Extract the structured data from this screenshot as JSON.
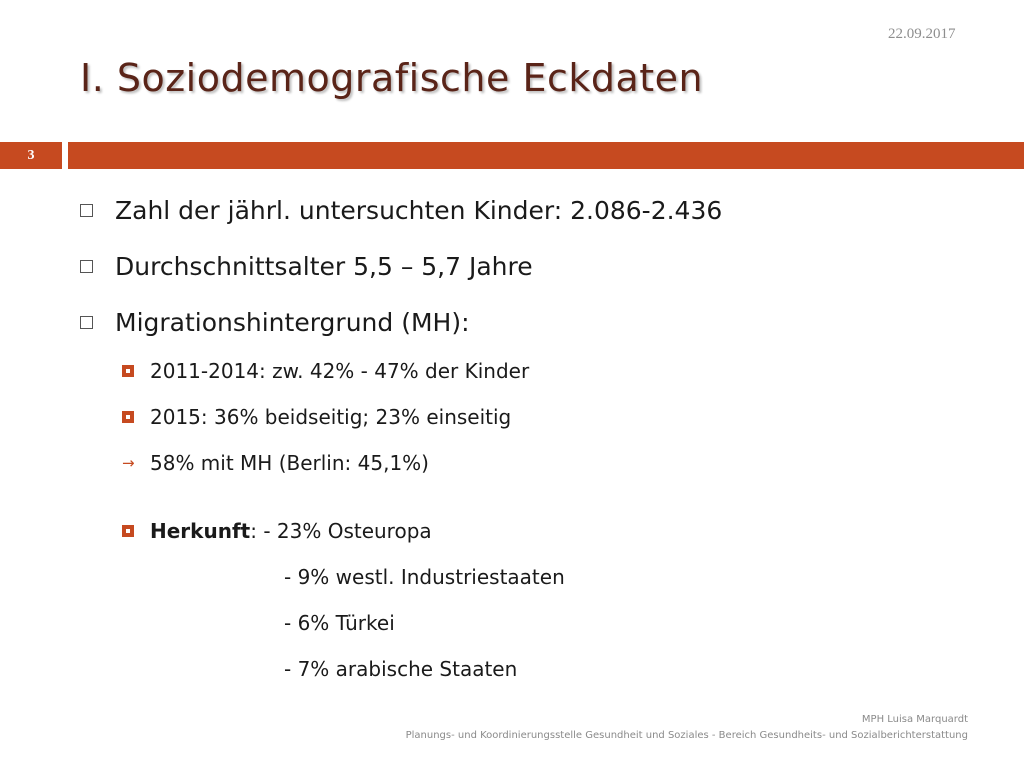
{
  "header": {
    "date": "22.09.2017",
    "title": "I. Soziodemografische Eckdaten",
    "slide_number": "3"
  },
  "bullets": [
    {
      "text": "Zahl der jährl. untersuchten Kinder: 2.086-2.436"
    },
    {
      "text": "Durchschnittsalter 5,5 – 5,7 Jahre"
    },
    {
      "text": "Migrationshintergrund (MH):"
    }
  ],
  "sub_bullets": [
    {
      "text": "2011-2014: zw. 42% - 47% der Kinder"
    },
    {
      "text": "2015: 36% beidseitig; 23% einseitig"
    },
    {
      "text": "58% mit MH (Berlin: 45,1%)"
    }
  ],
  "origin": {
    "label": "Herkunft",
    "first": ": - 23% Osteuropa",
    "lines": [
      "- 9% westl. Industriestaaten",
      "- 6% Türkei",
      "- 7% arabische Staaten"
    ]
  },
  "footer": {
    "author": "MPH Luisa Marquardt",
    "org": "Planungs- und Koordinierungsstelle Gesundheit und Soziales  - Bereich Gesundheits- und Sozialberichterstattung"
  },
  "colors": {
    "accent": "#c64a20",
    "title": "#5a2418"
  },
  "icons": {
    "level1": "hollow-square-bullet-icon",
    "level2": "filled-square-bullet-icon",
    "arrow": "arrow-right-icon"
  }
}
